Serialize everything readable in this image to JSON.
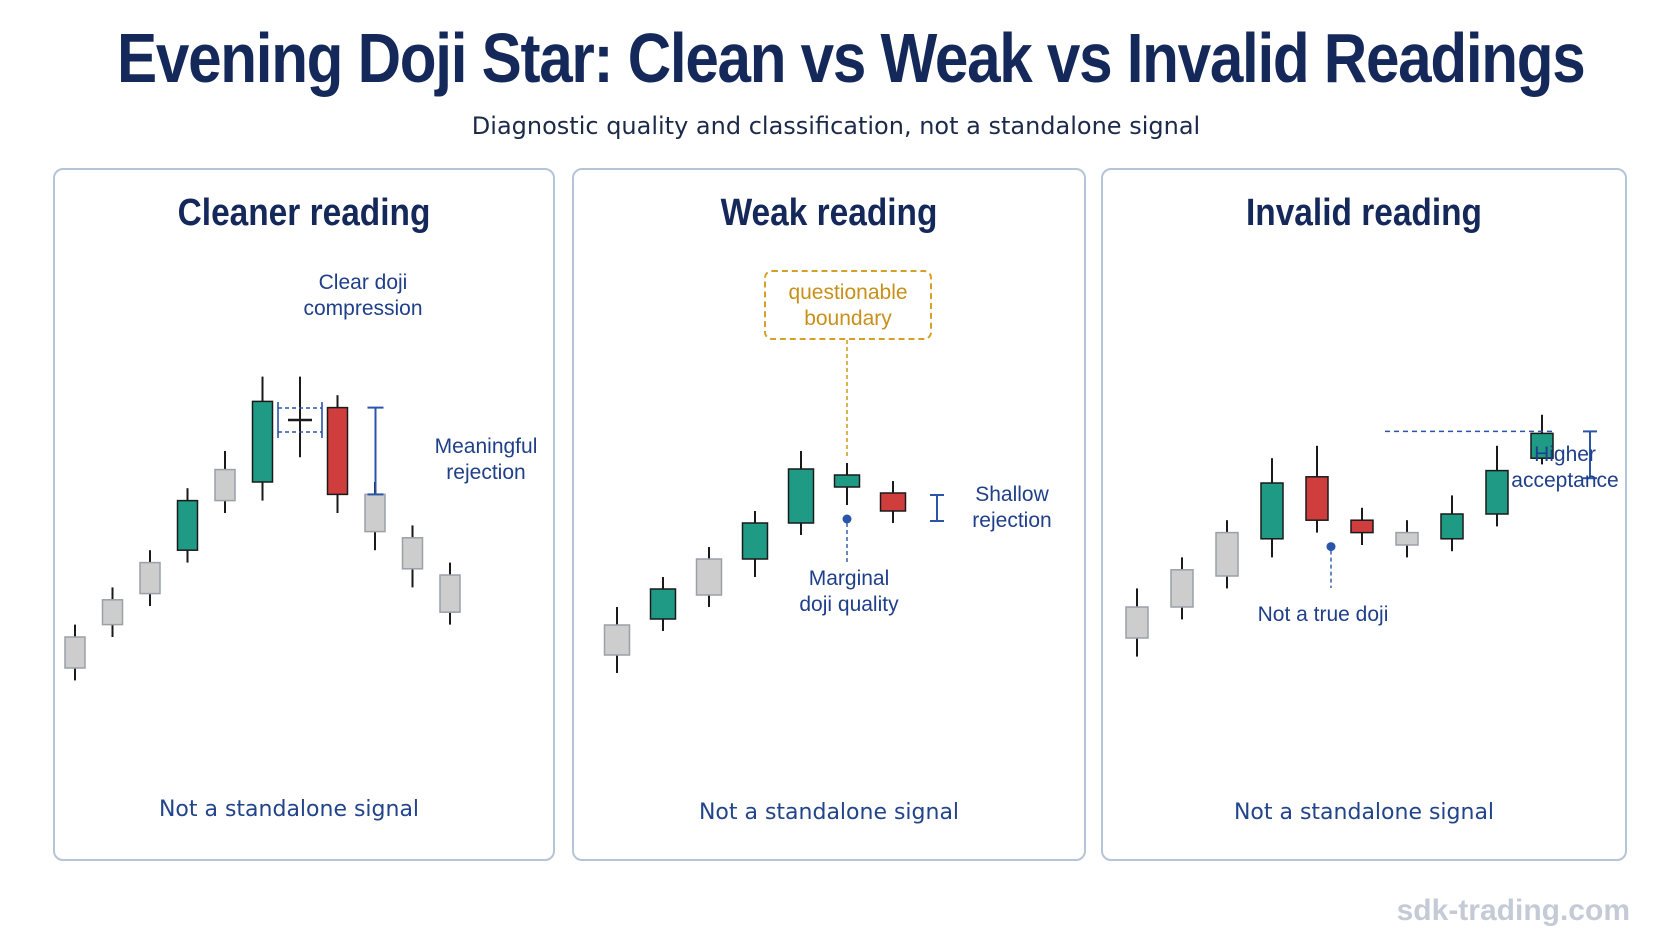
{
  "title": "Evening Doji Star: Clean vs Weak vs Invalid Readings",
  "subtitle": "Diagnostic quality and classification, not a standalone signal",
  "colors": {
    "bull": "#1e9a85",
    "bear": "#cf3d3d",
    "neutral": "#cdcdcd",
    "navy": "#14285a",
    "annotation": "#1f3f8a",
    "boundary": "#d4a02a"
  },
  "panels": [
    {
      "title": "Cleaner reading",
      "footer": "Not a standalone signal",
      "annotations": {
        "doji": "Clear doji\ncompression",
        "rejection": "Meaningful\nrejection"
      },
      "candles": [
        {
          "color": "neutral",
          "open": 10,
          "close": 15,
          "high": 17,
          "low": 8
        },
        {
          "color": "neutral",
          "open": 17,
          "close": 21,
          "high": 23,
          "low": 15
        },
        {
          "color": "neutral",
          "open": 22,
          "close": 27,
          "high": 29,
          "low": 20
        },
        {
          "color": "bull",
          "open": 29,
          "close": 37,
          "high": 39,
          "low": 27
        },
        {
          "color": "neutral",
          "open": 37,
          "close": 42,
          "high": 45,
          "low": 35
        },
        {
          "color": "bull",
          "open": 40,
          "close": 53,
          "high": 57,
          "low": 37
        },
        {
          "color": "doji",
          "open": 50,
          "close": 50,
          "high": 57,
          "low": 44
        },
        {
          "color": "bear",
          "open": 52,
          "close": 38,
          "high": 54,
          "low": 35
        },
        {
          "color": "neutral",
          "open": 38,
          "close": 32,
          "high": 40,
          "low": 29
        },
        {
          "color": "neutral",
          "open": 31,
          "close": 26,
          "high": 33,
          "low": 23
        },
        {
          "color": "neutral",
          "open": 25,
          "close": 19,
          "high": 27,
          "low": 17
        }
      ]
    },
    {
      "title": "Weak reading",
      "footer": "Not a standalone signal",
      "annotations": {
        "boundary": "questionable\nboundary",
        "quality": "Marginal\ndoji quality",
        "rejection": "Shallow\nrejection"
      },
      "candles": [
        {
          "color": "neutral",
          "open": 20,
          "close": 25,
          "high": 28,
          "low": 17
        },
        {
          "color": "bull",
          "open": 26,
          "close": 31,
          "high": 33,
          "low": 24
        },
        {
          "color": "neutral",
          "open": 30,
          "close": 36,
          "high": 38,
          "low": 28
        },
        {
          "color": "bull",
          "open": 36,
          "close": 42,
          "high": 44,
          "low": 33
        },
        {
          "color": "bull",
          "open": 42,
          "close": 51,
          "high": 54,
          "low": 40
        },
        {
          "color": "bull",
          "open": 48,
          "close": 50,
          "high": 52,
          "low": 45
        },
        {
          "color": "bear",
          "open": 47,
          "close": 44,
          "high": 49,
          "low": 42
        }
      ]
    },
    {
      "title": "Invalid reading",
      "footer": "Not a standalone signal",
      "annotations": {
        "doji": "Not a true doji",
        "acceptance": "Higher\nacceptance"
      },
      "candles": [
        {
          "color": "neutral",
          "open": 20,
          "close": 25,
          "high": 28,
          "low": 17
        },
        {
          "color": "neutral",
          "open": 25,
          "close": 31,
          "high": 33,
          "low": 23
        },
        {
          "color": "neutral",
          "open": 30,
          "close": 37,
          "high": 39,
          "low": 28
        },
        {
          "color": "bull",
          "open": 36,
          "close": 45,
          "high": 49,
          "low": 33
        },
        {
          "color": "bear",
          "open": 46,
          "close": 39,
          "high": 51,
          "low": 37
        },
        {
          "color": "bear",
          "open": 39,
          "close": 37,
          "high": 41,
          "low": 35
        },
        {
          "color": "neutral",
          "open": 35,
          "close": 37,
          "high": 39,
          "low": 33
        },
        {
          "color": "bull",
          "open": 36,
          "close": 40,
          "high": 43,
          "low": 34
        },
        {
          "color": "bull",
          "open": 40,
          "close": 47,
          "high": 51,
          "low": 38
        },
        {
          "color": "bull",
          "open": 49,
          "close": 53,
          "high": 56,
          "low": 48
        }
      ]
    }
  ],
  "watermark": "sdk-trading.com"
}
